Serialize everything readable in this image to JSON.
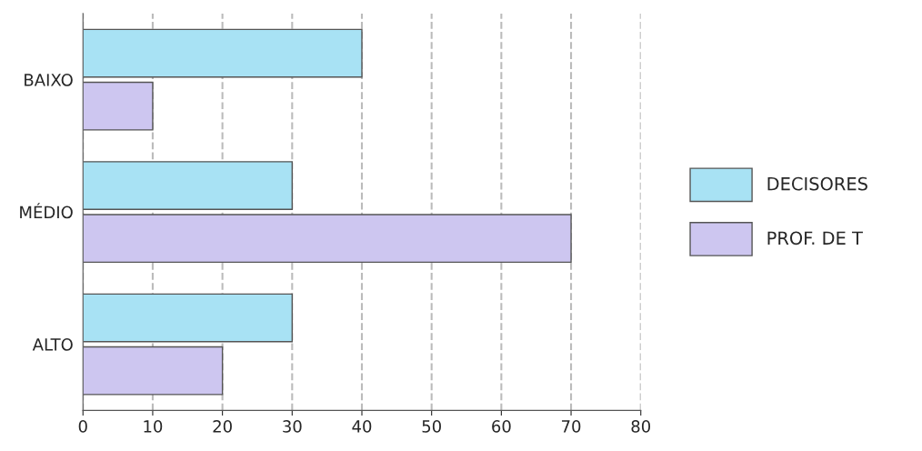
{
  "chart_data": {
    "type": "bar",
    "orientation": "horizontal",
    "categories": [
      "BAIXO",
      "MÉDIO",
      "ALTO"
    ],
    "series": [
      {
        "name": "DECISORES",
        "color": "#a8e2f4",
        "values": [
          40,
          30,
          30
        ]
      },
      {
        "name": "PROF. DE T",
        "color": "#cdc6f0",
        "values": [
          10,
          70,
          20
        ]
      }
    ],
    "xlim": [
      0,
      80
    ],
    "xticks": [
      0,
      10,
      20,
      30,
      40,
      50,
      60,
      70,
      80
    ],
    "grid": "x",
    "legend": "right"
  }
}
